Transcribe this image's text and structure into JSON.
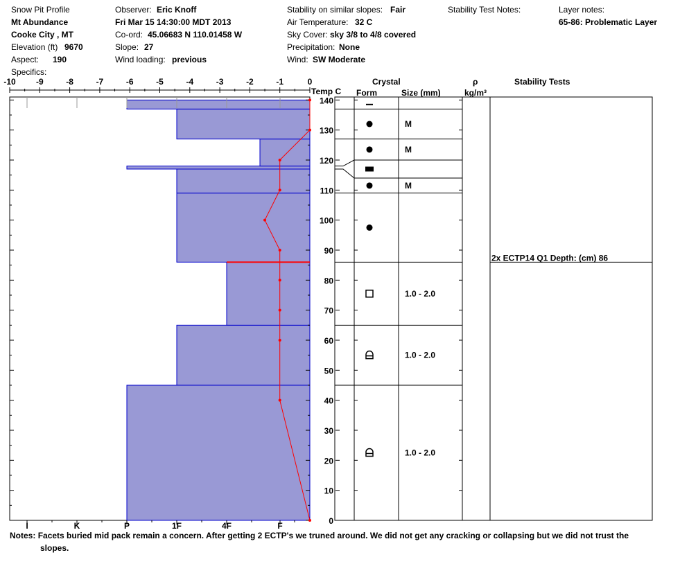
{
  "header": {
    "col1": [
      "Snow Pit Profile",
      "Mt Abundance",
      "Cooke City , MT",
      "Elevation (ft)",
      "Aspect:",
      "Specifics:"
    ],
    "elevation": "9670",
    "aspect": "190",
    "observer_label": "Observer:",
    "observer": "Eric Knoff",
    "datetime": "Fri Mar 15 14:30:00 MDT 2013",
    "coord_label": "Co-ord:",
    "coord": "45.06683 N 110.01458 W",
    "slope_label": "Slope:",
    "slope": "27",
    "wind_loading_label": "Wind loading:",
    "wind_loading": "previous",
    "stability_label": "Stability on similar slopes:",
    "stability": "Fair",
    "air_temp_label": "Air Temperature:",
    "air_temp": "32 C",
    "sky_label": "Sky Cover:",
    "sky": "sky 3/8 to 4/8 covered",
    "precip_label": "Precipitation:",
    "precip": "None",
    "wind_label": "Wind:",
    "wind": "SW Moderate",
    "stability_test_notes_label": "Stability Test Notes:",
    "layer_notes_label": "Layer notes:",
    "layer_note": "65-86: Problematic Layer"
  },
  "columns": {
    "temp": "Temp C",
    "crystal": "Crystal",
    "form": "Form",
    "size": "Size (mm)",
    "rho": "ρ",
    "density_unit": "kg/m³",
    "stability_tests": "Stability Tests"
  },
  "notes_label": "Notes:",
  "notes_text": "Facets buried mid pack remain a concern.  After getting 2 ECTP's we truned around.  We did not get any cracking or collapsing but we did not trust the",
  "notes_text2": "slopes.",
  "chart_data": {
    "type": "snow_profile",
    "temp_axis": {
      "ticks": [
        "-10",
        "-9",
        "-8",
        "-7",
        "-6",
        "-5",
        "-4",
        "-3",
        "-2",
        "-1",
        "0"
      ],
      "range": [
        -10,
        0
      ]
    },
    "height_axis": {
      "ticks": [
        "0",
        "10",
        "20",
        "30",
        "40",
        "50",
        "60",
        "70",
        "80",
        "90",
        "100",
        "110",
        "120",
        "130",
        "140"
      ],
      "range": [
        0,
        141
      ]
    },
    "hardness_ticks": [
      "I",
      "K",
      "P",
      "1F",
      "4F",
      "F"
    ],
    "hardness_values": {
      "F": 1,
      "4F": 2,
      "1F": 3,
      "P": 4,
      "K": 5,
      "I": 6
    },
    "layers": [
      {
        "bottom": 0,
        "top": 45,
        "hardness": "P"
      },
      {
        "bottom": 45,
        "top": 65,
        "hardness": "1F"
      },
      {
        "bottom": 65,
        "top": 86,
        "hardness": "4F"
      },
      {
        "bottom": 86,
        "top": 109,
        "hardness": "1F"
      },
      {
        "bottom": 109,
        "top": 117,
        "hardness": "1F"
      },
      {
        "bottom": 117,
        "top": 118,
        "hardness": "P"
      },
      {
        "bottom": 118,
        "top": 127,
        "hardness": "F-"
      },
      {
        "bottom": 127,
        "top": 137,
        "hardness": "1F"
      },
      {
        "bottom": 137,
        "top": 140,
        "hardness": "P"
      }
    ],
    "temperature_profile": [
      {
        "height": 0,
        "temp": 0
      },
      {
        "height": 40,
        "temp": -1
      },
      {
        "height": 60,
        "temp": -1
      },
      {
        "height": 70,
        "temp": -1
      },
      {
        "height": 80,
        "temp": -1
      },
      {
        "height": 90,
        "temp": -1
      },
      {
        "height": 100,
        "temp": -1.5
      },
      {
        "height": 110,
        "temp": -1
      },
      {
        "height": 120,
        "temp": -1
      },
      {
        "height": 130,
        "temp": 0
      },
      {
        "height": 140,
        "temp": 0
      }
    ],
    "problematic_layer_height": 86,
    "crystal_layers": [
      {
        "bottom": 137,
        "top": 140,
        "form": "bar",
        "size": ""
      },
      {
        "bottom": 127,
        "top": 137,
        "form": "dot",
        "size": "M"
      },
      {
        "bottom": 120,
        "top": 127,
        "form": "dot",
        "size": "M"
      },
      {
        "bottom": 114,
        "top": 120,
        "form": "square-filled",
        "size": ""
      },
      {
        "bottom": 109,
        "top": 114,
        "form": "dot",
        "size": "M"
      },
      {
        "bottom": 86,
        "top": 109,
        "form": "dot",
        "size": ""
      },
      {
        "bottom": 65,
        "top": 86,
        "form": "square",
        "size": "1.0 - 2.0"
      },
      {
        "bottom": 45,
        "top": 65,
        "form": "depth-hoar",
        "size": "1.0 - 2.0"
      },
      {
        "bottom": 0,
        "top": 45,
        "form": "depth-hoar",
        "size": "1.0 - 2.0"
      }
    ],
    "stability_tests": [
      {
        "height": 86,
        "text": "2x ECTP14 Q1 Depth: (cm) 86"
      }
    ],
    "colors": {
      "layer_fill": "#9999d5",
      "layer_edge": "#0000cc",
      "temp_line": "#ff0000"
    }
  }
}
